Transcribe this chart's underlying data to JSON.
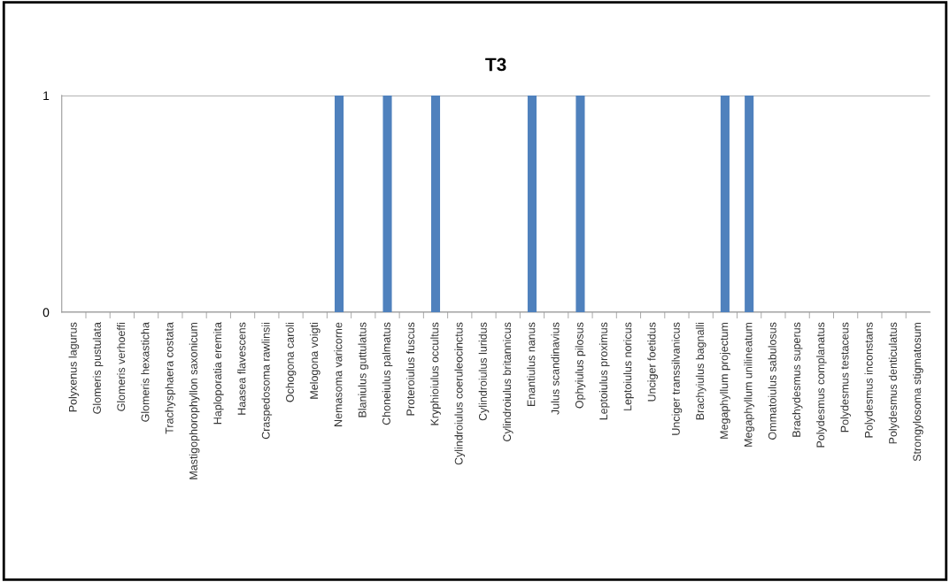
{
  "chart_data": {
    "type": "bar",
    "title": "T3",
    "categories": [
      "Polyxenus lagurus",
      "Glomeris pustulata",
      "Glomeris verhoeffi",
      "Glomeris hexasticha",
      "Trachysphaera costata",
      "Mastigophorophyllon saxonicum",
      "Haploporatia eremita",
      "Haasea flavescens",
      "Craspedosoma rawlinsii",
      "Ochogona caroli",
      "Melogona voigti",
      "Nemasoma varicorne",
      "Blaniulus guttulatus",
      "Choneiulus palmatus",
      "Proteroiulus fuscus",
      "Kryphioiulus occultus",
      "Cylindroiulus coeruleocinctus",
      "Cylindroiulus luridus",
      "Cylindroiulus britannicus",
      "Enantiulus nanus",
      "Julus scandinavius",
      "Ophyiulus pilosus",
      "Leptoiulus proximus",
      "Leptoiulus noricus",
      "Unciger foetidus",
      "Unciger transsilvanicus",
      "Brachyiulus bagnalli",
      "Megaphyllum projectum",
      "Megaphyllum unilineatum",
      "Ommatoiulus sabulosus",
      "Brachydesmus superus",
      "Polydesmus complanatus",
      "Polydesmus testaceus",
      "Polydesmus inconstans",
      "Polydesmus denticulatus",
      "Strongylosoma stigmatosum"
    ],
    "values": [
      0,
      0,
      0,
      0,
      0,
      0,
      0,
      0,
      0,
      0,
      0,
      1,
      0,
      1,
      0,
      1,
      0,
      0,
      0,
      1,
      0,
      1,
      0,
      0,
      0,
      0,
      0,
      1,
      1,
      0,
      0,
      0,
      0,
      0,
      0,
      0
    ],
    "color": "#4f81bd",
    "ylim": [
      0,
      1
    ],
    "yticks": [
      0,
      1
    ],
    "grid": "y",
    "legend": false
  }
}
